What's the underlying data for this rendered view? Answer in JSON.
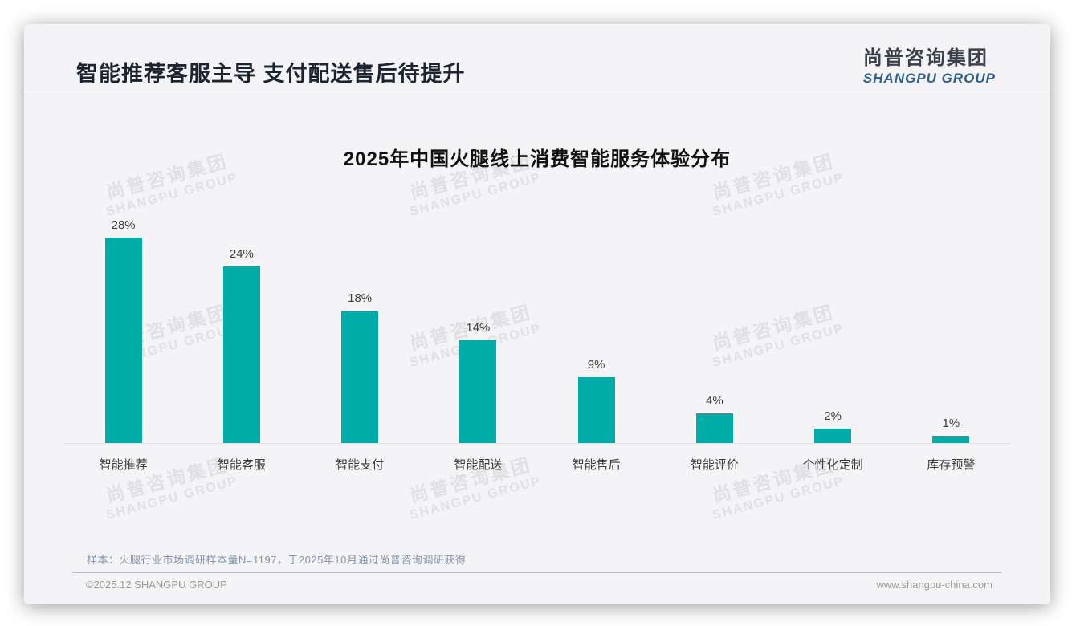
{
  "page": {
    "title": "智能推荐客服主导 支付配送售后待提升",
    "logo": {
      "cn": "尚普咨询集团",
      "en": "SHANGPU GROUP"
    },
    "watermark": {
      "cn": "尚普咨询集团",
      "en": "SHANGPU GROUP"
    },
    "source_note": "样本：火腿行业市场调研样本量N=1197，于2025年10月通过尚普咨询调研获得",
    "footer_left": "©2025.12 SHANGPU GROUP",
    "footer_right": "www.shangpu-china.com"
  },
  "chart_data": {
    "type": "bar",
    "title": "2025年中国火腿线上消费智能服务体验分布",
    "categories": [
      "智能推荐",
      "智能客服",
      "智能支付",
      "智能配送",
      "智能售后",
      "智能评价",
      "个性化定制",
      "库存预警"
    ],
    "values": [
      28,
      24,
      18,
      14,
      9,
      4,
      2,
      1
    ],
    "data_labels": [
      "28%",
      "24%",
      "18%",
      "14%",
      "9%",
      "4%",
      "2%",
      "1%"
    ],
    "unit": "%",
    "ylim": [
      0,
      30
    ],
    "grid": false,
    "legend": "none",
    "bar_color": "#00aca8",
    "label_color": "#3c3c3c"
  },
  "colors": {
    "card_background": "#f4f4f6",
    "title_text": "#1c2430",
    "accent_teal": "#00aca8",
    "logo_blue": "#2d5e8e",
    "note_blue_gray": "#8293a7",
    "footer_gray": "#9a9a9a"
  }
}
